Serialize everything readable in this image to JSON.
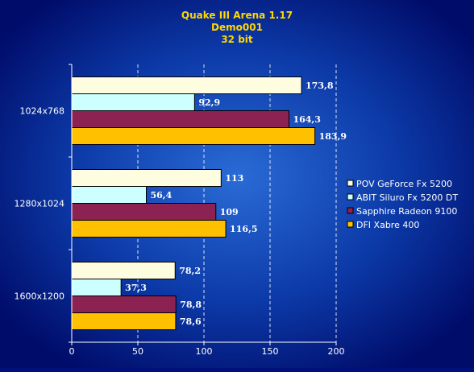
{
  "chart_data": {
    "type": "bar",
    "orientation": "horizontal",
    "title_lines": [
      "Quake III Arena 1.17",
      "Demo001",
      "32 bit"
    ],
    "xlabel": "",
    "ylabel": "",
    "categories": [
      "1024x768",
      "1280x1024",
      "1600x1200"
    ],
    "series": [
      {
        "name": "POV GeForce Fx 5200",
        "color": "#fffde0",
        "values": [
          173.8,
          113,
          78.2
        ],
        "labels": [
          "173,8",
          "113",
          "78,2"
        ]
      },
      {
        "name": "ABIT Siluro Fx 5200 DT",
        "color": "#ccffff",
        "values": [
          92.9,
          56.4,
          37.3
        ],
        "labels": [
          "92,9",
          "56,4",
          "37,3"
        ]
      },
      {
        "name": "Sapphire Radeon 9100",
        "color": "#8b2252",
        "values": [
          164.3,
          109,
          78.8
        ],
        "labels": [
          "164,3",
          "109",
          "78,8"
        ]
      },
      {
        "name": "DFI Xabre 400",
        "color": "#ffc000",
        "values": [
          183.9,
          116.5,
          78.6
        ],
        "labels": [
          "183,9",
          "116,5",
          "78,6"
        ]
      }
    ],
    "xlim": [
      0,
      200
    ],
    "xticks": [
      0,
      50,
      100,
      150,
      200
    ],
    "xtick_labels": [
      "0",
      "50",
      "100",
      "150",
      "200"
    ],
    "grid": true,
    "legend_position": "right"
  }
}
